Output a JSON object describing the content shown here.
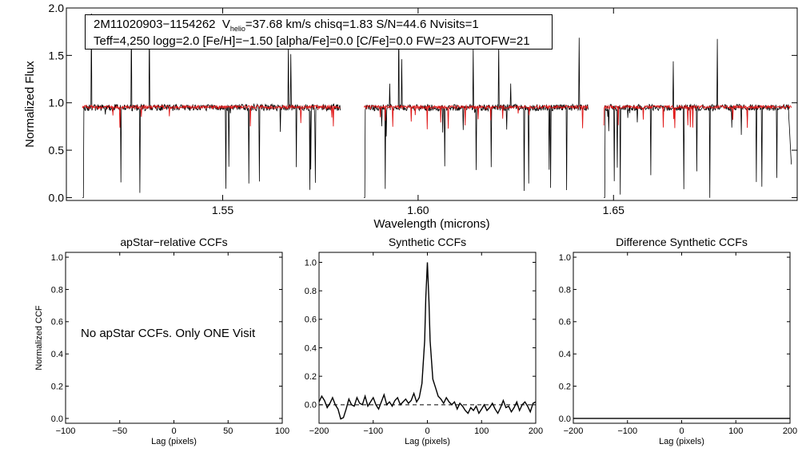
{
  "chart_data": [
    {
      "type": "line",
      "name": "spectrum",
      "xlabel": "Wavelength (microns)",
      "ylabel": "Normalized Flux",
      "xlim": [
        1.51,
        1.697
      ],
      "ylim": [
        -0.03,
        2.0
      ],
      "x_ticks": [
        {
          "value": 1.55,
          "label": "1.55"
        },
        {
          "value": 1.6,
          "label": "1.60"
        },
        {
          "value": 1.65,
          "label": "1.65"
        }
      ],
      "y_ticks": [
        {
          "value": 0.0,
          "label": "0.0"
        },
        {
          "value": 0.5,
          "label": "0.5"
        },
        {
          "value": 1.0,
          "label": "1.0"
        },
        {
          "value": 1.5,
          "label": "1.5"
        },
        {
          "value": 2.0,
          "label": "2.0"
        }
      ],
      "chip_ranges": [
        [
          1.5141,
          1.5801
        ],
        [
          1.5861,
          1.6435
        ],
        [
          1.6475,
          1.6955
        ]
      ],
      "series": [
        {
          "name": "observed",
          "color": "#000000",
          "level": 0.95
        },
        {
          "name": "synthetic",
          "color": "#e01818",
          "level": 0.955
        }
      ],
      "info_line1": {
        "star": "2M11020903−1154262",
        "v_prefix": "V",
        "v_sub": "helio",
        "v_rest": "=37.68 km/s  chisq=1.83  S/N=44.6  Nvisits=1"
      },
      "info_line2": "Teff=4,250 logg=2.0 [Fe/H]=−1.50 [alpha/Fe]=0.0 [C/Fe]=0.0 FW=23 AUTOFW=21"
    },
    {
      "type": "line",
      "name": "apstar-ccf",
      "title": "apStar−relative CCFs",
      "xlabel": "Lag (pixels)",
      "ylabel": "Normalized CCF",
      "xlim": [
        -100,
        100
      ],
      "ylim": [
        -0.03,
        1.03
      ],
      "x_ticks": [
        {
          "value": -100,
          "label": "−100"
        },
        {
          "value": -50,
          "label": "−50"
        },
        {
          "value": 0,
          "label": "0"
        },
        {
          "value": 50,
          "label": "50"
        },
        {
          "value": 100,
          "label": "100"
        }
      ],
      "y_ticks": [
        {
          "value": 0.0,
          "label": "0.0"
        },
        {
          "value": 0.2,
          "label": "0.2"
        },
        {
          "value": 0.4,
          "label": "0.4"
        },
        {
          "value": 0.6,
          "label": "0.6"
        },
        {
          "value": 0.8,
          "label": "0.8"
        },
        {
          "value": 1.0,
          "label": "1.0"
        }
      ],
      "message": "No apStar CCFs.  Only ONE Visit"
    },
    {
      "type": "line",
      "name": "synthetic-ccf",
      "title": "Synthetic CCFs",
      "xlabel": "Lag (pixels)",
      "xlim": [
        -200,
        200
      ],
      "ylim": [
        -0.13,
        1.07
      ],
      "x_ticks": [
        {
          "value": -200,
          "label": "−200"
        },
        {
          "value": -100,
          "label": "−100"
        },
        {
          "value": 0,
          "label": "0"
        },
        {
          "value": 100,
          "label": "100"
        },
        {
          "value": 200,
          "label": "200"
        }
      ],
      "y_ticks": [
        {
          "value": 0.0,
          "label": "0.0"
        },
        {
          "value": 0.2,
          "label": "0.2"
        },
        {
          "value": 0.4,
          "label": "0.4"
        },
        {
          "value": 0.6,
          "label": "0.6"
        },
        {
          "value": 0.8,
          "label": "0.8"
        },
        {
          "value": 1.0,
          "label": "1.0"
        }
      ],
      "ccf": {
        "x": [
          -200,
          -195,
          -190,
          -185,
          -180,
          -175,
          -170,
          -165,
          -160,
          -155,
          -150,
          -145,
          -140,
          -135,
          -130,
          -125,
          -120,
          -115,
          -110,
          -105,
          -100,
          -95,
          -90,
          -85,
          -80,
          -75,
          -70,
          -65,
          -60,
          -55,
          -50,
          -45,
          -40,
          -35,
          -30,
          -25,
          -20,
          -15,
          -10,
          -5,
          -3,
          0,
          3,
          5,
          10,
          15,
          20,
          25,
          30,
          35,
          40,
          45,
          50,
          55,
          60,
          65,
          70,
          75,
          80,
          85,
          90,
          95,
          100,
          105,
          110,
          115,
          120,
          125,
          130,
          135,
          140,
          145,
          150,
          155,
          160,
          165,
          170,
          175,
          180,
          185,
          190,
          195,
          200
        ],
        "y": [
          0.02,
          0.06,
          0.03,
          -0.02,
          0.01,
          0.05,
          0.0,
          -0.03,
          -0.1,
          -0.09,
          -0.03,
          0.04,
          0.0,
          -0.01,
          0.05,
          0.01,
          0.0,
          0.06,
          -0.01,
          0.02,
          0.05,
          0.0,
          -0.03,
          0.02,
          0.07,
          0.0,
          0.02,
          -0.01,
          0.03,
          0.05,
          0.0,
          0.02,
          0.04,
          0.01,
          0.03,
          0.08,
          0.02,
          0.05,
          0.15,
          0.45,
          0.75,
          1.0,
          0.72,
          0.45,
          0.18,
          0.12,
          0.06,
          0.04,
          0.01,
          0.05,
          0.02,
          0.0,
          0.02,
          -0.03,
          0.01,
          -0.01,
          -0.04,
          -0.06,
          -0.02,
          -0.04,
          -0.01,
          -0.06,
          -0.03,
          0.0,
          -0.04,
          -0.02,
          0.01,
          -0.03,
          -0.06,
          -0.02,
          0.03,
          -0.02,
          -0.01,
          -0.05,
          -0.02,
          0.02,
          -0.04,
          0.0,
          0.02,
          -0.01,
          -0.05,
          0.01,
          0.02
        ]
      },
      "baseline": 0.0
    },
    {
      "type": "line",
      "name": "difference-ccf",
      "title": "Difference Synthetic CCFs",
      "xlabel": "Lag (pixels)",
      "xlim": [
        -200,
        200
      ],
      "ylim": [
        -0.03,
        1.03
      ],
      "x_ticks": [
        {
          "value": -200,
          "label": "−200"
        },
        {
          "value": -100,
          "label": "−100"
        },
        {
          "value": 0,
          "label": "0"
        },
        {
          "value": 100,
          "label": "100"
        },
        {
          "value": 200,
          "label": "200"
        }
      ],
      "y_ticks": [
        {
          "value": 0.0,
          "label": "0.0"
        },
        {
          "value": 0.2,
          "label": "0.2"
        },
        {
          "value": 0.4,
          "label": "0.4"
        },
        {
          "value": 0.6,
          "label": "0.6"
        },
        {
          "value": 0.8,
          "label": "0.8"
        },
        {
          "value": 1.0,
          "label": "1.0"
        }
      ],
      "baseline": 0.0
    }
  ]
}
